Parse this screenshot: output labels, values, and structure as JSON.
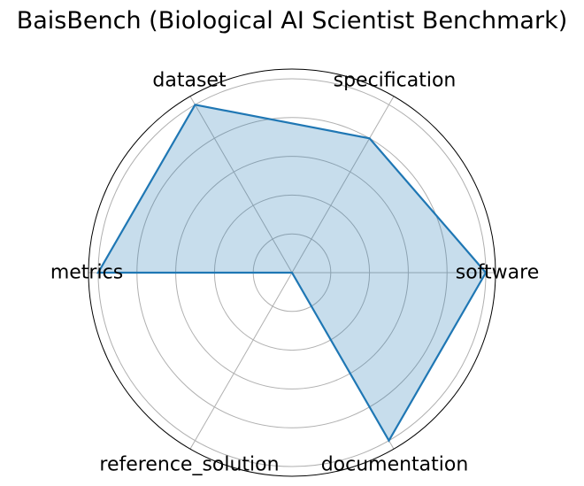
{
  "chart_data": {
    "type": "radar",
    "title": "BaisBench (Biological AI Scientist Benchmark)",
    "axes": [
      "software",
      "specification",
      "dataset",
      "metrics",
      "reference_solution",
      "documentation"
    ],
    "values": [
      1.0,
      0.8,
      1.0,
      1.0,
      0.0,
      1.0
    ],
    "rlim": [
      0,
      1.05
    ],
    "rgrid": [
      0.2,
      0.4,
      0.6,
      0.8,
      1.0
    ],
    "grid": true,
    "colors": {
      "line": "#1f77b4",
      "fill": "#1f77b4",
      "grid": "#b0b0b0",
      "outer": "#000000"
    }
  }
}
